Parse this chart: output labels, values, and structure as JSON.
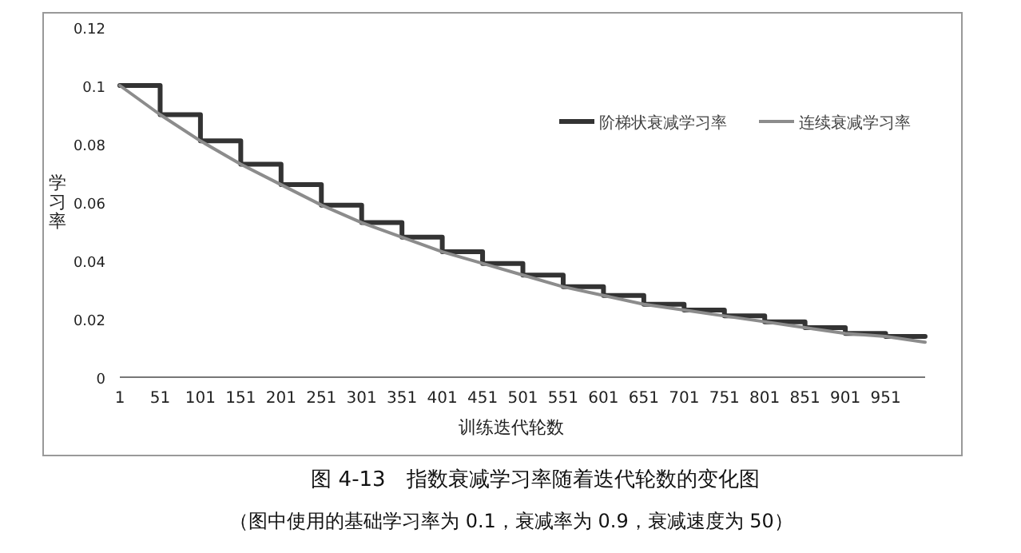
{
  "chart_data": {
    "type": "line",
    "title": "图 4-13　指数衰减学习率随着迭代轮数的变化图",
    "subtitle": "（图中使用的基础学习率为 0.1，衰减率为 0.9，衰减速度为 50）",
    "xlabel": "训练迭代轮数",
    "ylabel": "学习率",
    "series": [
      {
        "name": "阶梯状衰减学习率",
        "type": "step",
        "color": "#333333",
        "x": [
          1,
          51,
          101,
          151,
          201,
          251,
          301,
          351,
          401,
          451,
          501,
          551,
          601,
          651,
          701,
          751,
          801,
          851,
          901,
          951,
          1000
        ],
        "values": [
          0.1,
          0.09,
          0.081,
          0.073,
          0.066,
          0.059,
          0.053,
          0.048,
          0.043,
          0.039,
          0.035,
          0.031,
          0.028,
          0.025,
          0.023,
          0.021,
          0.019,
          0.017,
          0.015,
          0.014,
          0.014
        ]
      },
      {
        "name": "连续衰减学习率",
        "color": "#8c8c8c",
        "x": [
          1,
          51,
          101,
          151,
          201,
          251,
          301,
          351,
          401,
          451,
          501,
          551,
          601,
          651,
          701,
          751,
          801,
          851,
          901,
          951,
          1000
        ],
        "values": [
          0.1,
          0.09,
          0.081,
          0.073,
          0.066,
          0.059,
          0.053,
          0.048,
          0.043,
          0.039,
          0.035,
          0.031,
          0.028,
          0.025,
          0.023,
          0.021,
          0.019,
          0.017,
          0.015,
          0.014,
          0.012
        ]
      }
    ],
    "xlim": [
      1,
      1000
    ],
    "xticks": [
      1,
      51,
      101,
      151,
      201,
      251,
      301,
      351,
      401,
      451,
      501,
      551,
      601,
      651,
      701,
      751,
      801,
      851,
      901,
      951
    ],
    "ylim": [
      0,
      0.12
    ],
    "yticks": [
      0,
      0.02,
      0.04,
      0.06,
      0.08,
      0.1,
      0.12
    ],
    "legend": "top right",
    "grid": false
  }
}
